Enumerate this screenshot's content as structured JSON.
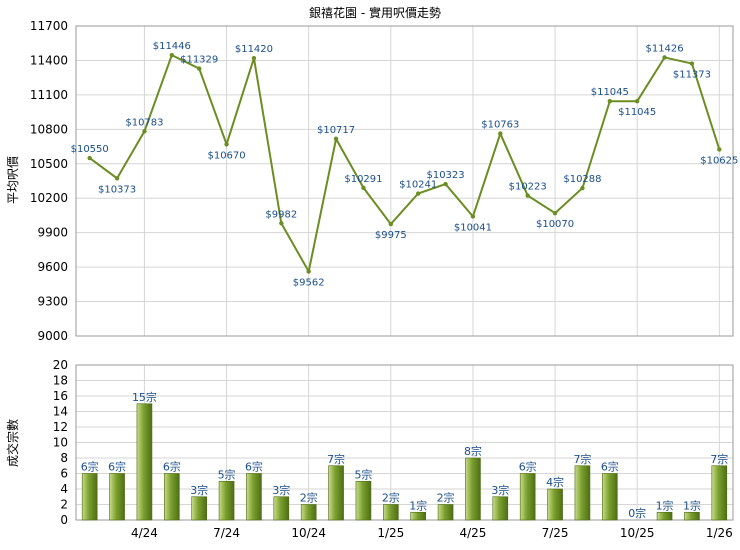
{
  "chart_data": [
    {
      "type": "line",
      "title": "銀禧花園 - 實用呎價走勢",
      "ylabel": "平均呎價",
      "ylim": [
        9000,
        11700
      ],
      "yticks": [
        9000,
        9300,
        9600,
        9900,
        10200,
        10500,
        10800,
        11100,
        11400,
        11700
      ],
      "grid": true,
      "color": "#6b8e23",
      "series": [
        {
          "values": [
            10550,
            10373,
            10783,
            11446,
            11329,
            10670,
            11420,
            9982,
            9562,
            10717,
            10291,
            9975,
            10241,
            10323,
            10041,
            10763,
            10223,
            10070,
            10288,
            11045,
            11045,
            11426,
            11373,
            10625
          ],
          "labels": [
            "$10550",
            "$10373",
            "$10783",
            "$11446",
            "$11329",
            "$10670",
            "$11420",
            "$9982",
            "$9562",
            "$10717",
            "$10291",
            "$9975",
            "$10241",
            "$10323",
            "$10041",
            "$10763",
            "$10223",
            "$10070",
            "$10288",
            "$11045",
            "$11045",
            "$11426",
            "$11373",
            "$10625"
          ]
        }
      ]
    },
    {
      "type": "bar",
      "ylabel": "成交宗數",
      "ylim": [
        0,
        20
      ],
      "yticks": [
        0,
        2,
        4,
        6,
        8,
        10,
        12,
        14,
        16,
        18,
        20
      ],
      "grid": true,
      "color": "#6b8e23",
      "values": [
        6,
        6,
        15,
        6,
        3,
        5,
        6,
        3,
        2,
        7,
        5,
        2,
        1,
        2,
        8,
        3,
        6,
        4,
        7,
        6,
        0,
        1,
        1,
        7
      ],
      "labels": [
        "6宗",
        "6宗",
        "15宗",
        "6宗",
        "3宗",
        "5宗",
        "6宗",
        "3宗",
        "2宗",
        "7宗",
        "5宗",
        "2宗",
        "1宗",
        "2宗",
        "8宗",
        "3宗",
        "6宗",
        "4宗",
        "7宗",
        "6宗",
        "0宗",
        "1宗",
        "1宗",
        "7宗"
      ],
      "xticks": [
        {
          "index": 2,
          "label": "4/24"
        },
        {
          "index": 5,
          "label": "7/24"
        },
        {
          "index": 8,
          "label": "10/24"
        },
        {
          "index": 11,
          "label": "1/25"
        },
        {
          "index": 14,
          "label": "4/25"
        },
        {
          "index": 17,
          "label": "7/25"
        },
        {
          "index": 20,
          "label": "10/25"
        },
        {
          "index": 23,
          "label": "1/26"
        }
      ]
    }
  ]
}
